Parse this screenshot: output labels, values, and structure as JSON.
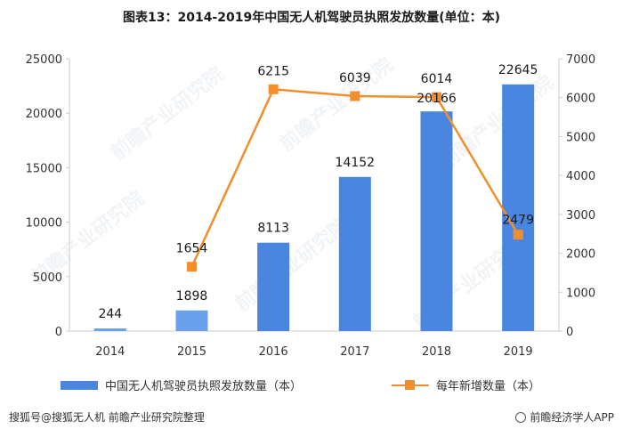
{
  "title": "图表13：2014-2019年中国无人机驾驶员执照发放数量(单位：本)",
  "legend": {
    "bar_label": "中国无人机驾驶员执照发放数量（本）",
    "line_label": "每年新增数量（本）"
  },
  "footer": {
    "source": "搜狐号@搜狐无人机 前瞻产业研究院整理",
    "brand": "前瞻经济学人APP"
  },
  "watermark": "前瞻产业研究院",
  "colors": {
    "bar": "#4a86e0",
    "bar_light": "#6aa0ec",
    "line": "#f28f2c",
    "axis": "#cccccc"
  },
  "chart_data": {
    "type": "bar",
    "categories": [
      "2014",
      "2015",
      "2016",
      "2017",
      "2018",
      "2019"
    ],
    "series": [
      {
        "name": "中国无人机驾驶员执照发放数量（本）",
        "type": "bar",
        "axis": "left",
        "values": [
          244,
          1898,
          8113,
          14152,
          20166,
          22645
        ]
      },
      {
        "name": "每年新增数量（本）",
        "type": "line",
        "axis": "right",
        "values": [
          null,
          1654,
          6215,
          6039,
          6014,
          2479
        ]
      }
    ],
    "y_left": {
      "ylim": [
        0,
        25000
      ],
      "ticks": [
        0,
        5000,
        10000,
        15000,
        20000,
        25000
      ]
    },
    "y_right": {
      "ylim": [
        0,
        7000
      ],
      "ticks": [
        0,
        1000,
        2000,
        3000,
        4000,
        5000,
        6000,
        7000
      ]
    },
    "grid": false,
    "legend_position": "bottom"
  }
}
